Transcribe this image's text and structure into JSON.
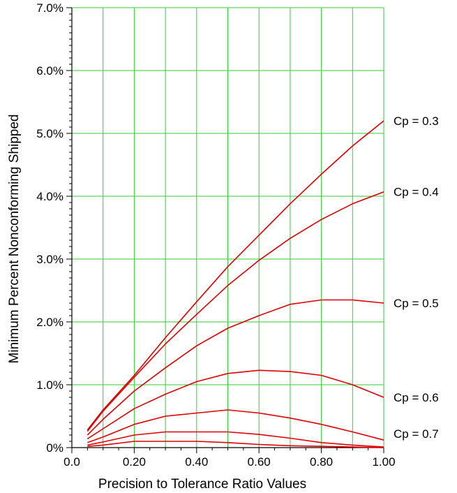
{
  "chart_data": {
    "type": "line",
    "title": "",
    "xlabel": "Precision to Tolerance Ratio Values",
    "ylabel": "Minimum Percent Nonconforming Shipped",
    "xlim": [
      0,
      1
    ],
    "ylim": [
      0,
      7
    ],
    "grid": true,
    "x_ticks": [
      0,
      0.2,
      0.4,
      0.6,
      0.8,
      1.0
    ],
    "x_tick_labels": [
      "0.0",
      "0.20",
      "0.40",
      "0.60",
      "0.80",
      "1.00"
    ],
    "y_ticks": [
      0,
      1,
      2,
      3,
      4,
      5,
      6,
      7
    ],
    "y_tick_labels": [
      "0%",
      "1.0%",
      "2.0%",
      "3.0%",
      "4.0%",
      "5.0%",
      "6.0%",
      "7.0%"
    ],
    "x": [
      0.05,
      0.1,
      0.2,
      0.3,
      0.4,
      0.5,
      0.6,
      0.7,
      0.8,
      0.9,
      1.0
    ],
    "series": [
      {
        "name": "Cp = 0.3",
        "values": [
          0.28,
          0.6,
          1.15,
          1.75,
          2.32,
          2.88,
          3.38,
          3.88,
          4.35,
          4.8,
          5.2
        ]
      },
      {
        "name": "Cp = 0.4",
        "values": [
          0.26,
          0.58,
          1.12,
          1.65,
          2.12,
          2.58,
          2.98,
          3.33,
          3.63,
          3.88,
          4.07
        ]
      },
      {
        "name": "Cp = 0.5",
        "values": [
          0.2,
          0.45,
          0.9,
          1.27,
          1.62,
          1.9,
          2.1,
          2.28,
          2.35,
          2.35,
          2.3
        ]
      },
      {
        "name": "Cp = 0.6",
        "values": [
          0.14,
          0.3,
          0.62,
          0.85,
          1.05,
          1.18,
          1.23,
          1.21,
          1.15,
          1.0,
          0.8
        ]
      },
      {
        "name": "Cp = 0.7",
        "values": [
          0.08,
          0.17,
          0.37,
          0.5,
          0.55,
          0.6,
          0.55,
          0.47,
          0.37,
          0.25,
          0.12
        ]
      },
      {
        "name": "",
        "values": [
          0.04,
          0.09,
          0.2,
          0.25,
          0.25,
          0.25,
          0.21,
          0.15,
          0.08,
          0.04,
          0.01
        ]
      },
      {
        "name": "",
        "values": [
          0.02,
          0.04,
          0.1,
          0.1,
          0.1,
          0.08,
          0.05,
          0.03,
          0.02,
          0.01,
          0.0
        ]
      }
    ]
  },
  "colors": {
    "series": "#e00000",
    "grid": "#33cc33",
    "axis": "#000000"
  }
}
